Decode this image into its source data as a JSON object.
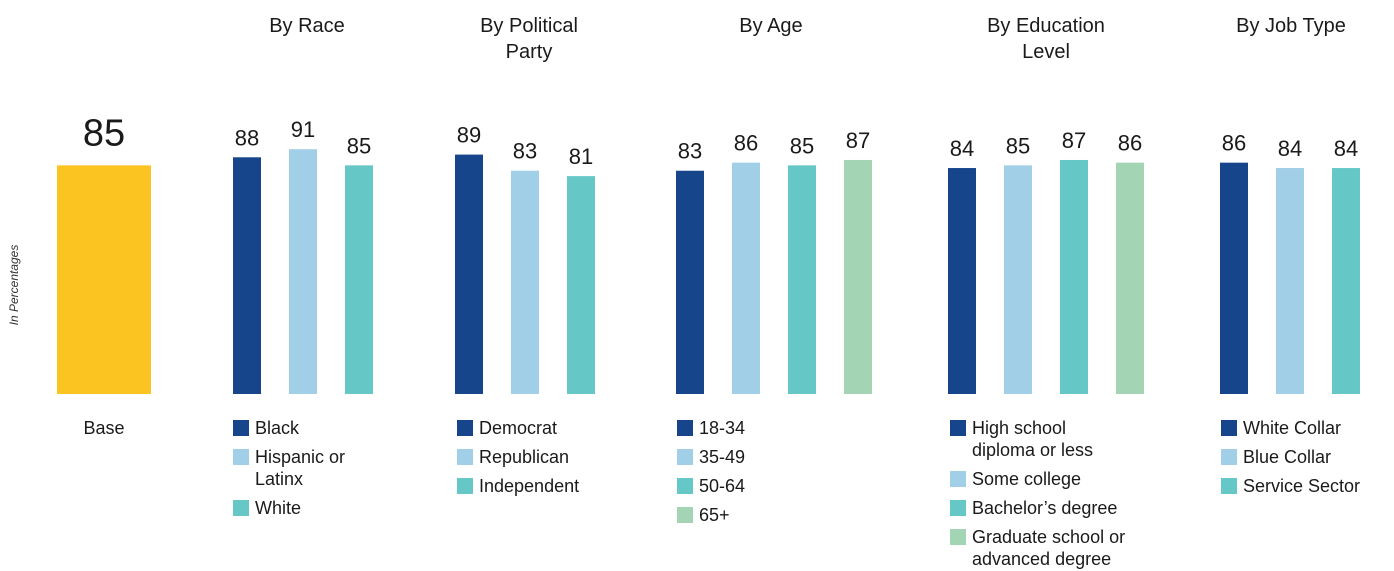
{
  "chart_data": {
    "type": "bar",
    "ylabel": "In Percentages",
    "baseline_value_units": "percent",
    "base": {
      "label": "Base",
      "value": 85,
      "color": "#fcc421"
    },
    "groups": [
      {
        "title": [
          "By Race"
        ],
        "series": [
          {
            "name": [
              "Black"
            ],
            "value": 88,
            "color": "#16458c"
          },
          {
            "name": [
              "Hispanic or",
              "Latinx"
            ],
            "value": 91,
            "color": "#a2cfe8"
          },
          {
            "name": [
              "White"
            ],
            "value": 85,
            "color": "#66c8c6"
          }
        ]
      },
      {
        "title": [
          "By Political",
          "Party"
        ],
        "series": [
          {
            "name": [
              "Democrat"
            ],
            "value": 89,
            "color": "#16458c"
          },
          {
            "name": [
              "Republican"
            ],
            "value": 83,
            "color": "#a2cfe8"
          },
          {
            "name": [
              "Independent"
            ],
            "value": 81,
            "color": "#66c8c6"
          }
        ]
      },
      {
        "title": [
          "By Age"
        ],
        "series": [
          {
            "name": [
              "18-34"
            ],
            "value": 83,
            "color": "#16458c"
          },
          {
            "name": [
              "35-49"
            ],
            "value": 86,
            "color": "#a2cfe8"
          },
          {
            "name": [
              "50-64"
            ],
            "value": 85,
            "color": "#66c8c6"
          },
          {
            "name": [
              "65+"
            ],
            "value": 87,
            "color": "#a3d5b5"
          }
        ]
      },
      {
        "title": [
          "By Education",
          "Level"
        ],
        "series": [
          {
            "name": [
              "High school",
              "diploma or less"
            ],
            "value": 84,
            "color": "#16458c"
          },
          {
            "name": [
              "Some college"
            ],
            "value": 85,
            "color": "#a2cfe8"
          },
          {
            "name": [
              "Bachelor’s degree"
            ],
            "value": 87,
            "color": "#66c8c6"
          },
          {
            "name": [
              "Graduate school or",
              "advanced degree"
            ],
            "value": 86,
            "color": "#a3d5b5"
          }
        ]
      },
      {
        "title": [
          "By Job Type"
        ],
        "series": [
          {
            "name": [
              "White Collar"
            ],
            "value": 86,
            "color": "#16458c"
          },
          {
            "name": [
              "Blue Collar"
            ],
            "value": 84,
            "color": "#a2cfe8"
          },
          {
            "name": [
              "Service Sector"
            ],
            "value": 84,
            "color": "#66c8c6"
          }
        ]
      }
    ]
  }
}
